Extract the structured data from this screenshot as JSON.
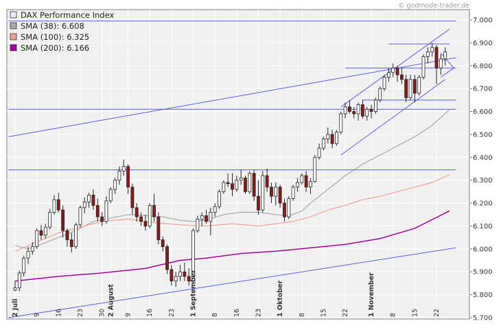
{
  "watermark": "© godmode-trader.de",
  "chart_data": {
    "type": "candlestick",
    "ylim": [
      5700,
      7000
    ],
    "y_ticks": [
      "7.000",
      "6.900",
      "6.800",
      "6.700",
      "6.600",
      "6.500",
      "6.400",
      "6.300",
      "6.200",
      "6.100",
      "6.000",
      "5.900",
      "5.800",
      "5.700"
    ],
    "y_tick_values": [
      7000,
      6900,
      6800,
      6700,
      6600,
      6500,
      6400,
      6300,
      6200,
      6100,
      6000,
      5900,
      5800,
      5700
    ],
    "x_labels": [
      {
        "i": 0,
        "label": "2 Juli",
        "month": true
      },
      {
        "i": 5,
        "label": "9",
        "month": false
      },
      {
        "i": 10,
        "label": "16",
        "month": false
      },
      {
        "i": 15,
        "label": "23",
        "month": false
      },
      {
        "i": 20,
        "label": "30",
        "month": false
      },
      {
        "i": 22,
        "label": "2 August",
        "month": true
      },
      {
        "i": 26,
        "label": "9",
        "month": false
      },
      {
        "i": 31,
        "label": "16",
        "month": false
      },
      {
        "i": 36,
        "label": "23",
        "month": false
      },
      {
        "i": 41,
        "label": "1 September",
        "month": true
      },
      {
        "i": 46,
        "label": "8",
        "month": false
      },
      {
        "i": 51,
        "label": "16",
        "month": false
      },
      {
        "i": 56,
        "label": "23",
        "month": false
      },
      {
        "i": 61,
        "label": "1 Oktober",
        "month": true
      },
      {
        "i": 66,
        "label": "8",
        "month": false
      },
      {
        "i": 71,
        "label": "15",
        "month": false
      },
      {
        "i": 76,
        "label": "22",
        "month": false
      },
      {
        "i": 82,
        "label": "1 November",
        "month": true
      },
      {
        "i": 87,
        "label": "8",
        "month": false
      },
      {
        "i": 92,
        "label": "15",
        "month": false
      },
      {
        "i": 97,
        "label": "22",
        "month": false
      }
    ],
    "legend": [
      {
        "label": "DAX Performance Index",
        "color": "#e8e8f4"
      },
      {
        "label": "SMA (38): 6.608",
        "color": "#a8a8a8"
      },
      {
        "label": "SMA (100): 6.325",
        "color": "#f4a098"
      },
      {
        "label": "SMA (200): 6.166",
        "color": "#a000a0"
      }
    ],
    "candles": [
      [
        5820,
        5860,
        5815,
        5830
      ],
      [
        5830,
        5905,
        5815,
        5895
      ],
      [
        5895,
        5970,
        5880,
        5960
      ],
      [
        5960,
        6010,
        5935,
        5990
      ],
      [
        5990,
        6030,
        5975,
        6010
      ],
      [
        6010,
        6090,
        6000,
        6080
      ],
      [
        6080,
        6105,
        6040,
        6060
      ],
      [
        6060,
        6110,
        6045,
        6095
      ],
      [
        6095,
        6175,
        6085,
        6160
      ],
      [
        6160,
        6235,
        6150,
        6215
      ],
      [
        6215,
        6245,
        6160,
        6170
      ],
      [
        6170,
        6190,
        6050,
        6080
      ],
      [
        6080,
        6090,
        6010,
        6040
      ],
      [
        6040,
        6070,
        5985,
        6010
      ],
      [
        6010,
        6115,
        6000,
        6105
      ],
      [
        6105,
        6190,
        6095,
        6180
      ],
      [
        6180,
        6225,
        6155,
        6205
      ],
      [
        6205,
        6245,
        6180,
        6235
      ],
      [
        6235,
        6260,
        6170,
        6190
      ],
      [
        6190,
        6220,
        6120,
        6140
      ],
      [
        6140,
        6160,
        6100,
        6120
      ],
      [
        6120,
        6230,
        6110,
        6210
      ],
      [
        6210,
        6270,
        6200,
        6260
      ],
      [
        6260,
        6310,
        6240,
        6300
      ],
      [
        6300,
        6360,
        6280,
        6340
      ],
      [
        6340,
        6390,
        6320,
        6360
      ],
      [
        6360,
        6370,
        6240,
        6270
      ],
      [
        6270,
        6285,
        6150,
        6180
      ],
      [
        6180,
        6200,
        6120,
        6140
      ],
      [
        6140,
        6160,
        6100,
        6120
      ],
      [
        6120,
        6150,
        6080,
        6100
      ],
      [
        6100,
        6200,
        6090,
        6190
      ],
      [
        6190,
        6240,
        6120,
        6140
      ],
      [
        6140,
        6160,
        6020,
        6040
      ],
      [
        6040,
        6055,
        5990,
        6010
      ],
      [
        6010,
        6020,
        5890,
        5910
      ],
      [
        5910,
        5930,
        5840,
        5860
      ],
      [
        5860,
        5900,
        5835,
        5880
      ],
      [
        5880,
        5930,
        5860,
        5900
      ],
      [
        5900,
        5940,
        5860,
        5880
      ],
      [
        5880,
        5915,
        5840,
        5860
      ],
      [
        5860,
        6090,
        5850,
        6080
      ],
      [
        6080,
        6145,
        6070,
        6130
      ],
      [
        6130,
        6160,
        6100,
        6145
      ],
      [
        6145,
        6170,
        6110,
        6120
      ],
      [
        6120,
        6180,
        6060,
        6160
      ],
      [
        6160,
        6200,
        6140,
        6185
      ],
      [
        6185,
        6260,
        6175,
        6250
      ],
      [
        6250,
        6300,
        6240,
        6290
      ],
      [
        6290,
        6330,
        6270,
        6285
      ],
      [
        6285,
        6330,
        6230,
        6260
      ],
      [
        6260,
        6320,
        6250,
        6300
      ],
      [
        6300,
        6345,
        6280,
        6310
      ],
      [
        6310,
        6320,
        6240,
        6250
      ],
      [
        6250,
        6340,
        6240,
        6330
      ],
      [
        6330,
        6345,
        6210,
        6230
      ],
      [
        6230,
        6300,
        6150,
        6170
      ],
      [
        6170,
        6340,
        6160,
        6320
      ],
      [
        6320,
        6350,
        6250,
        6270
      ],
      [
        6270,
        6290,
        6200,
        6230
      ],
      [
        6230,
        6290,
        6190,
        6270
      ],
      [
        6270,
        6280,
        6180,
        6200
      ],
      [
        6200,
        6220,
        6120,
        6140
      ],
      [
        6140,
        6230,
        6130,
        6220
      ],
      [
        6220,
        6280,
        6210,
        6270
      ],
      [
        6270,
        6310,
        6250,
        6290
      ],
      [
        6290,
        6330,
        6280,
        6320
      ],
      [
        6320,
        6340,
        6250,
        6270
      ],
      [
        6270,
        6310,
        6240,
        6295
      ],
      [
        6295,
        6410,
        6290,
        6400
      ],
      [
        6400,
        6460,
        6390,
        6440
      ],
      [
        6440,
        6490,
        6430,
        6480
      ],
      [
        6480,
        6530,
        6460,
        6500
      ],
      [
        6500,
        6520,
        6440,
        6460
      ],
      [
        6460,
        6520,
        6450,
        6510
      ],
      [
        6510,
        6600,
        6500,
        6590
      ],
      [
        6590,
        6640,
        6570,
        6620
      ],
      [
        6620,
        6650,
        6590,
        6600
      ],
      [
        6600,
        6620,
        6570,
        6590
      ],
      [
        6590,
        6640,
        6560,
        6630
      ],
      [
        6630,
        6650,
        6570,
        6580
      ],
      [
        6580,
        6620,
        6560,
        6610
      ],
      [
        6610,
        6630,
        6570,
        6600
      ],
      [
        6600,
        6660,
        6590,
        6650
      ],
      [
        6650,
        6710,
        6640,
        6700
      ],
      [
        6700,
        6760,
        6690,
        6750
      ],
      [
        6750,
        6790,
        6730,
        6770
      ],
      [
        6770,
        6810,
        6750,
        6790
      ],
      [
        6790,
        6800,
        6730,
        6760
      ],
      [
        6760,
        6790,
        6720,
        6740
      ],
      [
        6740,
        6760,
        6640,
        6660
      ],
      [
        6660,
        6760,
        6650,
        6740
      ],
      [
        6740,
        6760,
        6640,
        6680
      ],
      [
        6680,
        6760,
        6670,
        6750
      ],
      [
        6750,
        6850,
        6740,
        6840
      ],
      [
        6840,
        6880,
        6810,
        6860
      ],
      [
        6860,
        6900,
        6840,
        6880
      ],
      [
        6880,
        6890,
        6720,
        6790
      ],
      [
        6790,
        6850,
        6760,
        6830
      ],
      [
        6830,
        6880,
        6800,
        6860
      ]
    ],
    "sma38": [
      [
        0,
        6015
      ],
      [
        3,
        6000
      ],
      [
        6,
        6020
      ],
      [
        10,
        6050
      ],
      [
        14,
        6080
      ],
      [
        18,
        6120
      ],
      [
        22,
        6135
      ],
      [
        26,
        6150
      ],
      [
        30,
        6145
      ],
      [
        34,
        6140
      ],
      [
        38,
        6125
      ],
      [
        41,
        6120
      ],
      [
        44,
        6125
      ],
      [
        48,
        6150
      ],
      [
        52,
        6160
      ],
      [
        56,
        6160
      ],
      [
        60,
        6150
      ],
      [
        63,
        6145
      ],
      [
        66,
        6165
      ],
      [
        68,
        6200
      ],
      [
        72,
        6260
      ],
      [
        76,
        6320
      ],
      [
        80,
        6370
      ],
      [
        84,
        6410
      ],
      [
        88,
        6450
      ],
      [
        92,
        6490
      ],
      [
        96,
        6540
      ],
      [
        100,
        6608
      ]
    ],
    "sma100": [
      [
        0,
        5990
      ],
      [
        10,
        6070
      ],
      [
        20,
        6120
      ],
      [
        26,
        6130
      ],
      [
        32,
        6115
      ],
      [
        38,
        6105
      ],
      [
        44,
        6100
      ],
      [
        50,
        6110
      ],
      [
        56,
        6100
      ],
      [
        60,
        6110
      ],
      [
        64,
        6120
      ],
      [
        68,
        6140
      ],
      [
        72,
        6170
      ],
      [
        76,
        6190
      ],
      [
        80,
        6215
      ],
      [
        84,
        6230
      ],
      [
        88,
        6250
      ],
      [
        92,
        6270
      ],
      [
        96,
        6290
      ],
      [
        100,
        6325
      ]
    ],
    "sma200": [
      [
        0,
        5860
      ],
      [
        10,
        5880
      ],
      [
        20,
        5895
      ],
      [
        30,
        5915
      ],
      [
        38,
        5950
      ],
      [
        44,
        5960
      ],
      [
        52,
        5980
      ],
      [
        60,
        5990
      ],
      [
        68,
        6005
      ],
      [
        76,
        6020
      ],
      [
        84,
        6045
      ],
      [
        92,
        6090
      ],
      [
        100,
        6166
      ]
    ],
    "trendlines": [
      {
        "x1": -1.5,
        "y1": 5700,
        "x2": 101.5,
        "y2": 6005
      },
      {
        "x1": -1.5,
        "y1": 6490,
        "x2": 101.5,
        "y2": 6835
      },
      {
        "x1": -1.5,
        "y1": 6610,
        "x2": 101.5,
        "y2": 6610
      },
      {
        "x1": -1.5,
        "y1": 6345,
        "x2": 101.5,
        "y2": 6345
      },
      {
        "x1": -1.5,
        "y1": 6995,
        "x2": 101.5,
        "y2": 6995
      },
      {
        "x1": 75,
        "y1": 6620,
        "x2": 100,
        "y2": 6960
      },
      {
        "x1": 75,
        "y1": 6410,
        "x2": 99,
        "y2": 6740
      },
      {
        "x1": 80,
        "y1": 6650,
        "x2": 101.5,
        "y2": 6650
      },
      {
        "x1": 86,
        "y1": 6895,
        "x2": 100,
        "y2": 6895
      },
      {
        "x1": 76,
        "y1": 6790,
        "x2": 101.5,
        "y2": 6790
      }
    ],
    "arrow": {
      "points": [
        [
          98,
          6855
        ],
        [
          101,
          6790
        ],
        [
          98,
          6750
        ]
      ]
    }
  }
}
